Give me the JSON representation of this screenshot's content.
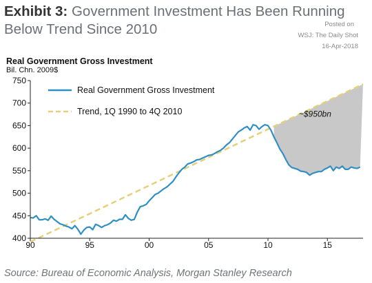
{
  "header": {
    "exhibit_label": "Exhibit 3:",
    "title_line1": "Government Investment Has Been Running",
    "title_line2": "Below Trend Since 2010"
  },
  "posted": {
    "line1": "Posted on",
    "line2": "WSJ: The Daily Shot",
    "line3": "16-Apr-2018"
  },
  "source": "Source: Bureau of Economic Analysis, Morgan Stanley Research",
  "chart_data": {
    "type": "line",
    "title": "Real Government  Gross Investment",
    "ylabel": "Bil. Chn. 2009$",
    "xlim": [
      1990,
      2018
    ],
    "ylim": [
      400,
      750
    ],
    "x_ticks": [
      {
        "value": 1990,
        "label": "90"
      },
      {
        "value": 1995,
        "label": "95"
      },
      {
        "value": 2000,
        "label": "00"
      },
      {
        "value": 2005,
        "label": "05"
      },
      {
        "value": 2010,
        "label": "10"
      },
      {
        "value": 2015,
        "label": "15"
      }
    ],
    "y_ticks": [
      400,
      450,
      500,
      550,
      600,
      650,
      700,
      750
    ],
    "grid": false,
    "legend_position": "top-left",
    "series": [
      {
        "name": "Real Government Gross Investment",
        "color": "#2f8fc4",
        "style": "solid",
        "x": [
          1990.0,
          1990.25,
          1990.5,
          1990.75,
          1991.0,
          1991.25,
          1991.5,
          1991.75,
          1992.0,
          1992.25,
          1992.5,
          1992.75,
          1993.0,
          1993.25,
          1993.5,
          1993.75,
          1994.0,
          1994.25,
          1994.5,
          1994.75,
          1995.0,
          1995.25,
          1995.5,
          1995.75,
          1996.0,
          1996.25,
          1996.5,
          1996.75,
          1997.0,
          1997.25,
          1997.5,
          1997.75,
          1998.0,
          1998.25,
          1998.5,
          1998.75,
          1999.0,
          1999.25,
          1999.5,
          1999.75,
          2000.0,
          2000.25,
          2000.5,
          2000.75,
          2001.0,
          2001.25,
          2001.5,
          2001.75,
          2002.0,
          2002.25,
          2002.5,
          2002.75,
          2003.0,
          2003.25,
          2003.5,
          2003.75,
          2004.0,
          2004.25,
          2004.5,
          2004.75,
          2005.0,
          2005.25,
          2005.5,
          2005.75,
          2006.0,
          2006.25,
          2006.5,
          2006.75,
          2007.0,
          2007.25,
          2007.5,
          2007.75,
          2008.0,
          2008.25,
          2008.5,
          2008.75,
          2009.0,
          2009.25,
          2009.5,
          2009.75,
          2010.0,
          2010.25,
          2010.5,
          2010.75,
          2011.0,
          2011.25,
          2011.5,
          2011.75,
          2012.0,
          2012.25,
          2012.5,
          2012.75,
          2013.0,
          2013.25,
          2013.5,
          2013.75,
          2014.0,
          2014.25,
          2014.5,
          2014.75,
          2015.0,
          2015.25,
          2015.5,
          2015.75,
          2016.0,
          2016.25,
          2016.5,
          2016.75,
          2017.0,
          2017.25,
          2017.5,
          2017.75
        ],
        "values": [
          446,
          445,
          450,
          441,
          441,
          443,
          440,
          449,
          442,
          437,
          432,
          430,
          427,
          425,
          421,
          428,
          420,
          409,
          418,
          424,
          425,
          419,
          431,
          428,
          424,
          428,
          430,
          434,
          440,
          438,
          442,
          442,
          452,
          444,
          440,
          442,
          458,
          470,
          472,
          475,
          483,
          490,
          497,
          500,
          505,
          510,
          514,
          520,
          526,
          536,
          545,
          553,
          558,
          565,
          567,
          570,
          574,
          575,
          578,
          581,
          584,
          585,
          588,
          592,
          595,
          600,
          607,
          612,
          620,
          628,
          636,
          640,
          645,
          648,
          640,
          652,
          650,
          642,
          648,
          652,
          650,
          640,
          625,
          612,
          598,
          588,
          575,
          563,
          557,
          555,
          553,
          549,
          548,
          546,
          540,
          544,
          546,
          548,
          548,
          553,
          556,
          560,
          550,
          558,
          555,
          560,
          553,
          553,
          558,
          556,
          555,
          558
        ]
      },
      {
        "name": "Trend, 1Q 1990 to 4Q 2010",
        "color": "#e6cf7a",
        "style": "dashed",
        "x": [
          1990,
          2018
        ],
        "values": [
          392,
          742
        ]
      }
    ],
    "shaded_region": {
      "from_x": 2010.5,
      "to_x": 2018,
      "between": "trend-above-actual",
      "color": "#c8c8c8"
    },
    "annotations": [
      {
        "text": "~$950bn"
      }
    ]
  }
}
